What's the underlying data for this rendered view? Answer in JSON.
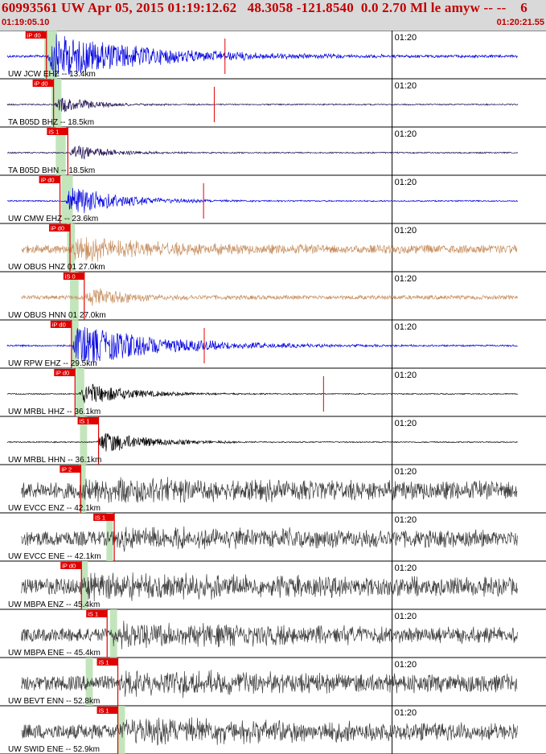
{
  "header": {
    "title": "60993561 UW Apr 05, 2015 01:19:12.62   48.3058 -121.8540  0.0 2.70 Ml le amyw -- --    6",
    "start_time": "01:19:05.10",
    "end_time": "01:20:21.55"
  },
  "colors": {
    "header_bg": "#d9d9d9",
    "header_text": "#c00000",
    "pick": "#e00000",
    "window": "#b8e0b0",
    "blue": "#0000e0",
    "navy": "#201050",
    "tan": "#c89060",
    "black": "#000000",
    "gray": "#404040"
  },
  "panels": [
    {
      "label": "UW JCW EHZ -- 13.4km",
      "minute": "01:20",
      "color": "blue",
      "pick": "iP d0",
      "pick_sec": 6.5,
      "win": [
        6.2,
        8.0
      ],
      "amp": 30,
      "sig_start": 6.5,
      "sig_end": 54,
      "decay": 14,
      "noise": 1.5,
      "spike_sec": 31.5,
      "spike_ok": true
    },
    {
      "label": "TA B05D BHZ -- 18.5km",
      "minute": "01:20",
      "color": "navy",
      "pick": "iP d0",
      "pick_sec": 7.5,
      "win": [
        7.2,
        8.6
      ],
      "amp": 12,
      "sig_start": 7.6,
      "sig_end": 54,
      "decay": 5,
      "noise": 0.8,
      "spike_sec": 30.0,
      "spike_ok": true
    },
    {
      "label": "TA B05D BHN -- 18.5km",
      "minute": "01:20",
      "color": "navy",
      "pick": "iS 1",
      "pick_sec": 9.5,
      "win": [
        7.8,
        9.2
      ],
      "amp": 12,
      "sig_start": 9.6,
      "sig_end": 54,
      "decay": 5,
      "noise": 0.8,
      "spike_sec": null,
      "spike_ok": false
    },
    {
      "label": "UW CMW EHZ -- 23.6km",
      "minute": "01:20",
      "color": "blue",
      "pick": "iP d0",
      "pick_sec": 8.4,
      "win": [
        8.6,
        10.2
      ],
      "amp": 22,
      "sig_start": 9.0,
      "sig_end": 54,
      "decay": 7,
      "noise": 0.8,
      "spike_sec": 28.5,
      "spike_ok": true
    },
    {
      "label": "UW OBUS HNZ 01 27.0km",
      "minute": "01:20",
      "color": "tan",
      "pick": "iP d0",
      "pick_sec": 9.8,
      "win": [
        9.4,
        10.5
      ],
      "amp": 14,
      "sig_start": 9.8,
      "sig_end": 54,
      "decay": 14,
      "noise": 5,
      "spike_sec": null,
      "spike_ok": false
    },
    {
      "label": "UW OBUS HNN 01 27.0km",
      "minute": "01:20",
      "color": "tan",
      "pick": "iS 0",
      "pick_sec": 11.8,
      "win": [
        9.8,
        11.0
      ],
      "amp": 14,
      "sig_start": 11.8,
      "sig_end": 54,
      "decay": 6,
      "noise": 2.5,
      "spike_sec": null,
      "spike_ok": false
    },
    {
      "label": "UW RPW EHZ -- 29.5km",
      "minute": "01:20",
      "color": "blue",
      "pick": "iP d0",
      "pick_sec": 10.0,
      "win": [
        10.0,
        11.0
      ],
      "amp": 28,
      "sig_start": 10.0,
      "sig_end": 54,
      "decay": 12,
      "noise": 1.0,
      "spike_sec": 28.6,
      "spike_ok": true
    },
    {
      "label": "UW MRBL HHZ -- 36.1km",
      "minute": "01:20",
      "color": "black",
      "pick": "iP d0",
      "pick_sec": 10.5,
      "win": [
        10.6,
        11.8
      ],
      "amp": 16,
      "sig_start": 11.0,
      "sig_end": 54,
      "decay": 7,
      "noise": 0.6,
      "spike_sec": 45.3,
      "spike_ok": true
    },
    {
      "label": "UW MRBL HHN -- 36.1km",
      "minute": "01:20",
      "color": "black",
      "pick": "iS 1",
      "pick_sec": 13.8,
      "win": [
        11.2,
        12.2
      ],
      "amp": 16,
      "sig_start": 13.5,
      "sig_end": 54,
      "decay": 7,
      "noise": 0.6,
      "spike_sec": null,
      "spike_ok": false
    },
    {
      "label": "UW EVCC ENZ -- 42.1km",
      "minute": "01:20",
      "color": "gray",
      "pick": "iP 2",
      "pick_sec": 11.3,
      "win": [
        11.1,
        12.0
      ],
      "amp": 10,
      "sig_start": 11.5,
      "sig_end": 54,
      "decay": 40,
      "noise": 10,
      "spike_sec": null,
      "spike_ok": false
    },
    {
      "label": "UW EVCC ENE -- 42.1km",
      "minute": "01:20",
      "color": "gray",
      "pick": "iS 1",
      "pick_sec": 16.0,
      "win": [
        14.9,
        15.8
      ],
      "amp": 10,
      "sig_start": 16.0,
      "sig_end": 54,
      "decay": 40,
      "noise": 9,
      "spike_sec": null,
      "spike_ok": false
    },
    {
      "label": "UW MBPA ENZ -- 45.4km",
      "minute": "01:20",
      "color": "gray",
      "pick": "iP d0",
      "pick_sec": 11.4,
      "win": [
        11.4,
        12.3
      ],
      "amp": 12,
      "sig_start": 11.6,
      "sig_end": 54,
      "decay": 40,
      "noise": 10,
      "spike_sec": null,
      "spike_ok": false
    },
    {
      "label": "UW MBPA ENE -- 45.4km",
      "minute": "01:20",
      "color": "gray",
      "pick": "iS 1",
      "pick_sec": 15.0,
      "win": [
        15.4,
        16.4
      ],
      "amp": 12,
      "sig_start": 15.2,
      "sig_end": 54,
      "decay": 40,
      "noise": 8,
      "spike_sec": null,
      "spike_ok": false
    },
    {
      "label": "UW BEVT ENN -- 52.8km",
      "minute": "01:20",
      "color": "gray",
      "pick": "iS 1",
      "pick_sec": 16.5,
      "win": [
        12.0,
        13.0
      ],
      "amp": 12,
      "sig_start": 16.8,
      "sig_end": 54,
      "decay": 40,
      "noise": 9,
      "spike_sec": null,
      "spike_ok": false
    },
    {
      "label": "UW SWID ENE -- 52.9km",
      "minute": "01:20",
      "color": "gray",
      "pick": "iS 1",
      "pick_sec": 16.5,
      "win": [
        16.5,
        17.5
      ],
      "amp": 12,
      "sig_start": 17.0,
      "sig_end": 54,
      "decay": 40,
      "noise": 9,
      "spike_sec": null,
      "spike_ok": false
    }
  ]
}
